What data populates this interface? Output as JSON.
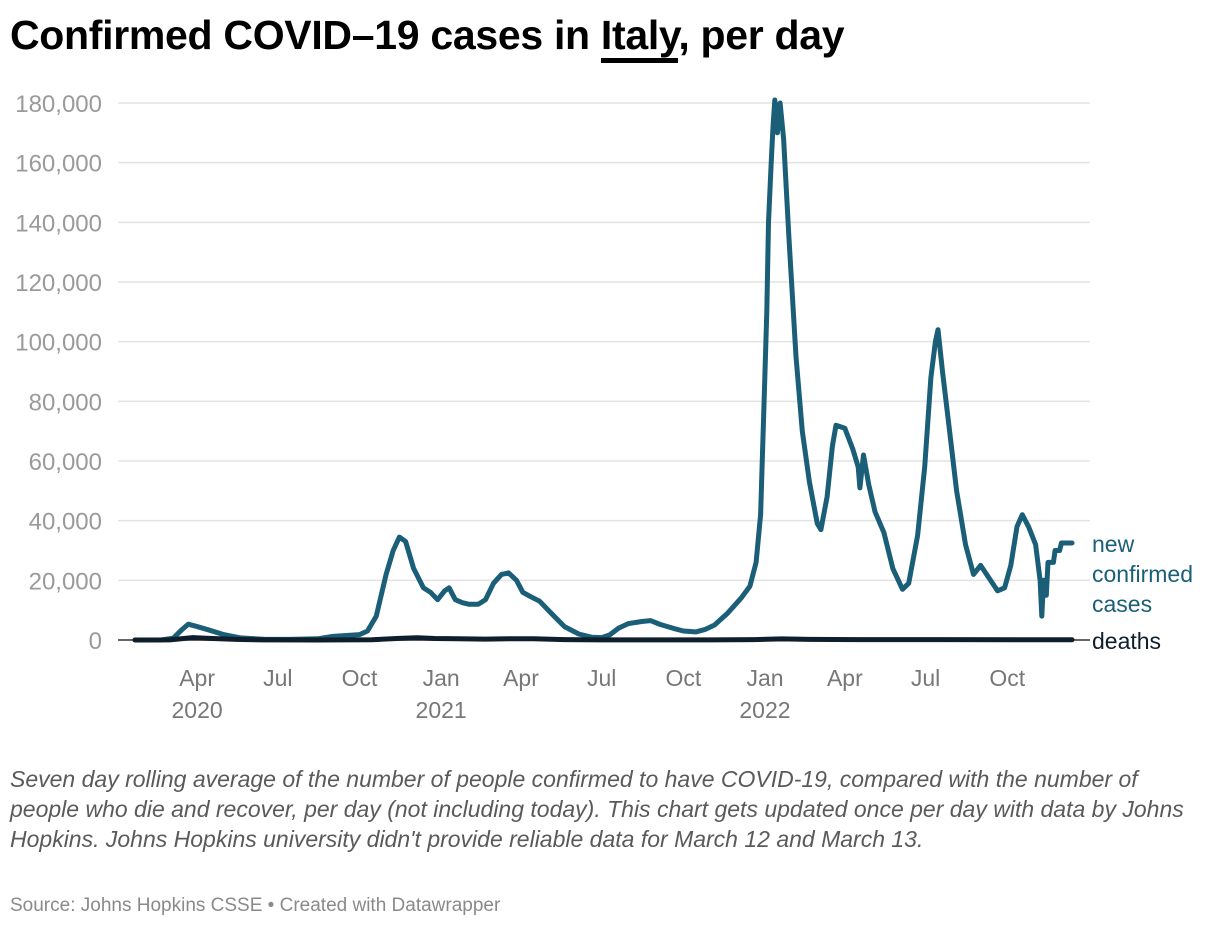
{
  "header": {
    "title_before": "Confirmed COVID–19 cases in ",
    "title_country": "Italy",
    "title_after": ", per day"
  },
  "description": "Seven day rolling average of the number of people confirmed to have COVID-19, compared with the number of people who die and recover, per day (not including today). This chart gets updated once per day with data by Johns Hopkins. Johns Hopkins university didn't provide reliable data for March 12 and March 13.",
  "footer": "Source: Johns Hopkins CSSE • Created with Datawrapper",
  "colors": {
    "cases": "#1a5e78",
    "deaths": "#0f1e2b",
    "grid": "#e3e3e3",
    "axis": "#333333"
  },
  "chart_data": {
    "type": "line",
    "title": "Confirmed COVID–19 cases in Italy, per day",
    "ylim": [
      0,
      180000
    ],
    "y_ticks": [
      0,
      20000,
      40000,
      60000,
      80000,
      100000,
      120000,
      140000,
      160000,
      180000
    ],
    "y_tick_labels": [
      "0",
      "20,000",
      "40,000",
      "60,000",
      "80,000",
      "100,000",
      "120,000",
      "140,000",
      "160,000",
      "180,000"
    ],
    "x_range": [
      "2020-01-22",
      "2022-12-13"
    ],
    "x_ticks": [
      {
        "date": "2020-04-01",
        "label": "Apr",
        "year": "2020"
      },
      {
        "date": "2020-07-01",
        "label": "Jul",
        "year": ""
      },
      {
        "date": "2020-10-01",
        "label": "Oct",
        "year": ""
      },
      {
        "date": "2021-01-01",
        "label": "Jan",
        "year": "2021"
      },
      {
        "date": "2021-04-01",
        "label": "Apr",
        "year": ""
      },
      {
        "date": "2021-07-01",
        "label": "Jul",
        "year": ""
      },
      {
        "date": "2021-10-01",
        "label": "Oct",
        "year": ""
      },
      {
        "date": "2022-01-01",
        "label": "Jan",
        "year": "2022"
      },
      {
        "date": "2022-04-01",
        "label": "Apr",
        "year": ""
      },
      {
        "date": "2022-07-01",
        "label": "Jul",
        "year": ""
      },
      {
        "date": "2022-10-01",
        "label": "Oct",
        "year": ""
      }
    ],
    "grid": true,
    "series": [
      {
        "name": "new confirmed cases",
        "label_lines": [
          "new",
          "confirmed",
          "cases"
        ],
        "points": [
          [
            "2020-01-22",
            0
          ],
          [
            "2020-02-20",
            0
          ],
          [
            "2020-03-05",
            600
          ],
          [
            "2020-03-15",
            3500
          ],
          [
            "2020-03-22",
            5300
          ],
          [
            "2020-04-01",
            4500
          ],
          [
            "2020-04-15",
            3300
          ],
          [
            "2020-05-01",
            1800
          ],
          [
            "2020-05-20",
            700
          ],
          [
            "2020-06-15",
            250
          ],
          [
            "2020-07-15",
            200
          ],
          [
            "2020-08-15",
            400
          ],
          [
            "2020-09-01",
            1200
          ],
          [
            "2020-10-01",
            1800
          ],
          [
            "2020-10-10",
            3000
          ],
          [
            "2020-10-20",
            8000
          ],
          [
            "2020-10-31",
            22000
          ],
          [
            "2020-11-08",
            30000
          ],
          [
            "2020-11-15",
            34500
          ],
          [
            "2020-11-22",
            33000
          ],
          [
            "2020-12-01",
            24000
          ],
          [
            "2020-12-12",
            17500
          ],
          [
            "2020-12-20",
            16000
          ],
          [
            "2020-12-28",
            13500
          ],
          [
            "2021-01-05",
            16500
          ],
          [
            "2021-01-10",
            17500
          ],
          [
            "2021-01-17",
            13500
          ],
          [
            "2021-01-25",
            12500
          ],
          [
            "2021-02-01",
            12000
          ],
          [
            "2021-02-12",
            12000
          ],
          [
            "2021-02-20",
            13500
          ],
          [
            "2021-03-01",
            19000
          ],
          [
            "2021-03-10",
            22000
          ],
          [
            "2021-03-18",
            22500
          ],
          [
            "2021-03-27",
            20000
          ],
          [
            "2021-04-03",
            16000
          ],
          [
            "2021-04-12",
            14500
          ],
          [
            "2021-04-22",
            13000
          ],
          [
            "2021-05-05",
            9000
          ],
          [
            "2021-05-20",
            4500
          ],
          [
            "2021-06-05",
            2000
          ],
          [
            "2021-06-20",
            900
          ],
          [
            "2021-07-01",
            800
          ],
          [
            "2021-07-10",
            1700
          ],
          [
            "2021-07-20",
            4000
          ],
          [
            "2021-07-31",
            5500
          ],
          [
            "2021-08-15",
            6200
          ],
          [
            "2021-08-25",
            6500
          ],
          [
            "2021-09-05",
            5200
          ],
          [
            "2021-09-20",
            3900
          ],
          [
            "2021-10-01",
            3000
          ],
          [
            "2021-10-15",
            2700
          ],
          [
            "2021-10-25",
            3500
          ],
          [
            "2021-11-05",
            5000
          ],
          [
            "2021-11-20",
            9000
          ],
          [
            "2021-12-05",
            14000
          ],
          [
            "2021-12-15",
            18000
          ],
          [
            "2021-12-22",
            26000
          ],
          [
            "2021-12-27",
            42000
          ],
          [
            "2021-12-31",
            80000
          ],
          [
            "2022-01-03",
            110000
          ],
          [
            "2022-01-05",
            140000
          ],
          [
            "2022-01-08",
            160000
          ],
          [
            "2022-01-10",
            172000
          ],
          [
            "2022-01-12",
            181000
          ],
          [
            "2022-01-15",
            170000
          ],
          [
            "2022-01-18",
            180000
          ],
          [
            "2022-01-22",
            168000
          ],
          [
            "2022-01-28",
            135000
          ],
          [
            "2022-02-05",
            95000
          ],
          [
            "2022-02-12",
            70000
          ],
          [
            "2022-02-20",
            53000
          ],
          [
            "2022-03-01",
            39000
          ],
          [
            "2022-03-05",
            37000
          ],
          [
            "2022-03-12",
            48000
          ],
          [
            "2022-03-18",
            65000
          ],
          [
            "2022-03-22",
            72000
          ],
          [
            "2022-04-01",
            71000
          ],
          [
            "2022-04-10",
            64000
          ],
          [
            "2022-04-16",
            58000
          ],
          [
            "2022-04-18",
            51000
          ],
          [
            "2022-04-22",
            62000
          ],
          [
            "2022-04-28",
            52000
          ],
          [
            "2022-05-05",
            43000
          ],
          [
            "2022-05-15",
            36000
          ],
          [
            "2022-05-25",
            24000
          ],
          [
            "2022-06-05",
            17000
          ],
          [
            "2022-06-12",
            19000
          ],
          [
            "2022-06-22",
            35000
          ],
          [
            "2022-06-30",
            58000
          ],
          [
            "2022-07-07",
            88000
          ],
          [
            "2022-07-12",
            100000
          ],
          [
            "2022-07-15",
            104000
          ],
          [
            "2022-07-20",
            90000
          ],
          [
            "2022-07-28",
            70000
          ],
          [
            "2022-08-05",
            50000
          ],
          [
            "2022-08-15",
            32000
          ],
          [
            "2022-08-24",
            22000
          ],
          [
            "2022-09-01",
            25000
          ],
          [
            "2022-09-10",
            21000
          ],
          [
            "2022-09-20",
            16500
          ],
          [
            "2022-09-28",
            17500
          ],
          [
            "2022-10-05",
            25000
          ],
          [
            "2022-10-12",
            38000
          ],
          [
            "2022-10-18",
            42000
          ],
          [
            "2022-10-25",
            38000
          ],
          [
            "2022-11-02",
            32000
          ],
          [
            "2022-11-07",
            20000
          ],
          [
            "2022-11-09",
            8000
          ],
          [
            "2022-11-11",
            20000
          ],
          [
            "2022-11-14",
            15000
          ],
          [
            "2022-11-16",
            26000
          ],
          [
            "2022-11-22",
            26000
          ],
          [
            "2022-11-24",
            30000
          ],
          [
            "2022-11-29",
            30000
          ],
          [
            "2022-12-01",
            32500
          ],
          [
            "2022-12-13",
            32500
          ]
        ]
      },
      {
        "name": "deaths",
        "label_lines": [
          "deaths"
        ],
        "points": [
          [
            "2020-01-22",
            0
          ],
          [
            "2020-03-01",
            50
          ],
          [
            "2020-03-27",
            800
          ],
          [
            "2020-04-15",
            550
          ],
          [
            "2020-05-15",
            200
          ],
          [
            "2020-06-15",
            50
          ],
          [
            "2020-08-15",
            10
          ],
          [
            "2020-10-15",
            100
          ],
          [
            "2020-11-15",
            550
          ],
          [
            "2020-12-05",
            750
          ],
          [
            "2020-12-25",
            500
          ],
          [
            "2021-01-20",
            450
          ],
          [
            "2021-02-20",
            300
          ],
          [
            "2021-03-25",
            450
          ],
          [
            "2021-04-15",
            400
          ],
          [
            "2021-05-20",
            150
          ],
          [
            "2021-07-01",
            20
          ],
          [
            "2021-09-01",
            50
          ],
          [
            "2021-11-01",
            40
          ],
          [
            "2021-12-20",
            120
          ],
          [
            "2022-01-20",
            380
          ],
          [
            "2022-02-20",
            200
          ],
          [
            "2022-04-15",
            120
          ],
          [
            "2022-07-20",
            150
          ],
          [
            "2022-10-15",
            80
          ],
          [
            "2022-12-13",
            70
          ]
        ]
      }
    ]
  }
}
